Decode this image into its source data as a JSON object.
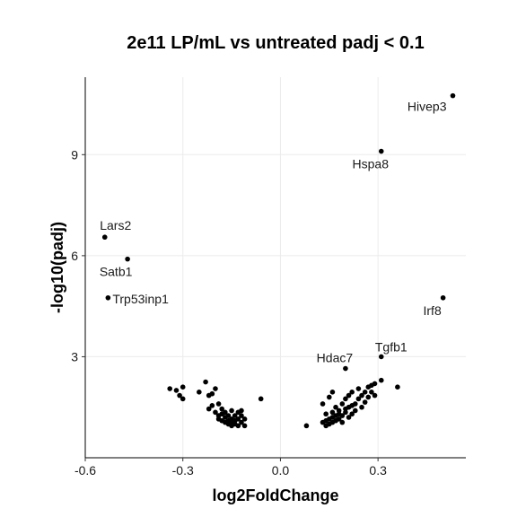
{
  "chart_data": {
    "type": "scatter",
    "title": "2e11 LP/mL vs untreated padj < 0.1",
    "xlabel": "log2FoldChange",
    "ylabel": "-log10(padj)",
    "xlim": [
      -0.6,
      0.57
    ],
    "ylim": [
      0,
      11.3
    ],
    "xticks": [
      -0.6,
      -0.3,
      0.0,
      0.3
    ],
    "xtick_labels": [
      "-0.6",
      "-0.3",
      "0.0",
      "0.3"
    ],
    "yticks": [
      3,
      6,
      9
    ],
    "ytick_labels": [
      "3",
      "6",
      "9"
    ],
    "grid": true,
    "labeled_points": [
      {
        "label": "Hivep3",
        "x": 0.53,
        "y": 10.75
      },
      {
        "label": "Hspa8",
        "x": 0.31,
        "y": 9.1
      },
      {
        "label": "Lars2",
        "x": -0.54,
        "y": 6.55
      },
      {
        "label": "Satb1",
        "x": -0.47,
        "y": 5.9
      },
      {
        "label": "Trp53inp1",
        "x": -0.53,
        "y": 4.75
      },
      {
        "label": "Irf8",
        "x": 0.5,
        "y": 4.75
      },
      {
        "label": "Tgfb1",
        "x": 0.31,
        "y": 3.0
      },
      {
        "label": "Hdac7",
        "x": 0.2,
        "y": 2.65
      }
    ],
    "points": [
      [
        -0.34,
        2.05
      ],
      [
        -0.32,
        2.0
      ],
      [
        -0.31,
        1.85
      ],
      [
        -0.3,
        2.1
      ],
      [
        -0.3,
        1.75
      ],
      [
        -0.25,
        1.95
      ],
      [
        -0.23,
        2.25
      ],
      [
        -0.22,
        1.85
      ],
      [
        -0.22,
        1.45
      ],
      [
        -0.21,
        1.9
      ],
      [
        -0.21,
        1.55
      ],
      [
        -0.2,
        1.35
      ],
      [
        -0.2,
        2.05
      ],
      [
        -0.19,
        1.6
      ],
      [
        -0.19,
        1.25
      ],
      [
        -0.19,
        1.15
      ],
      [
        -0.18,
        1.3
      ],
      [
        -0.18,
        1.1
      ],
      [
        -0.18,
        1.45
      ],
      [
        -0.17,
        1.2
      ],
      [
        -0.17,
        1.05
      ],
      [
        -0.17,
        1.35
      ],
      [
        -0.16,
        1.25
      ],
      [
        -0.16,
        1.1
      ],
      [
        -0.16,
        1.0
      ],
      [
        -0.15,
        1.4
      ],
      [
        -0.15,
        1.15
      ],
      [
        -0.15,
        0.95
      ],
      [
        -0.15,
        1.05
      ],
      [
        -0.14,
        1.25
      ],
      [
        -0.14,
        1.1
      ],
      [
        -0.14,
        1.0
      ],
      [
        -0.13,
        1.35
      ],
      [
        -0.13,
        1.15
      ],
      [
        -0.13,
        0.95
      ],
      [
        -0.12,
        1.25
      ],
      [
        -0.12,
        1.05
      ],
      [
        -0.12,
        1.4
      ],
      [
        -0.11,
        1.15
      ],
      [
        -0.11,
        0.95
      ],
      [
        -0.06,
        1.75
      ],
      [
        0.08,
        0.95
      ],
      [
        0.13,
        1.6
      ],
      [
        0.13,
        1.05
      ],
      [
        0.14,
        1.1
      ],
      [
        0.14,
        0.95
      ],
      [
        0.14,
        1.3
      ],
      [
        0.15,
        1.0
      ],
      [
        0.15,
        1.15
      ],
      [
        0.15,
        1.8
      ],
      [
        0.16,
        1.05
      ],
      [
        0.16,
        1.2
      ],
      [
        0.16,
        1.95
      ],
      [
        0.16,
        1.35
      ],
      [
        0.17,
        1.1
      ],
      [
        0.17,
        1.25
      ],
      [
        0.17,
        1.5
      ],
      [
        0.18,
        1.15
      ],
      [
        0.18,
        1.4
      ],
      [
        0.18,
        1.3
      ],
      [
        0.19,
        1.25
      ],
      [
        0.19,
        1.6
      ],
      [
        0.19,
        1.05
      ],
      [
        0.2,
        1.45
      ],
      [
        0.2,
        1.75
      ],
      [
        0.2,
        1.35
      ],
      [
        0.21,
        1.5
      ],
      [
        0.21,
        1.2
      ],
      [
        0.21,
        1.85
      ],
      [
        0.22,
        1.55
      ],
      [
        0.22,
        1.3
      ],
      [
        0.22,
        1.95
      ],
      [
        0.23,
        1.6
      ],
      [
        0.23,
        1.4
      ],
      [
        0.24,
        1.75
      ],
      [
        0.24,
        2.05
      ],
      [
        0.25,
        1.85
      ],
      [
        0.25,
        1.5
      ],
      [
        0.26,
        1.95
      ],
      [
        0.26,
        1.65
      ],
      [
        0.27,
        2.1
      ],
      [
        0.27,
        1.8
      ],
      [
        0.28,
        2.15
      ],
      [
        0.28,
        1.95
      ],
      [
        0.29,
        2.2
      ],
      [
        0.29,
        1.85
      ],
      [
        0.31,
        2.3
      ],
      [
        0.36,
        2.1
      ]
    ]
  }
}
